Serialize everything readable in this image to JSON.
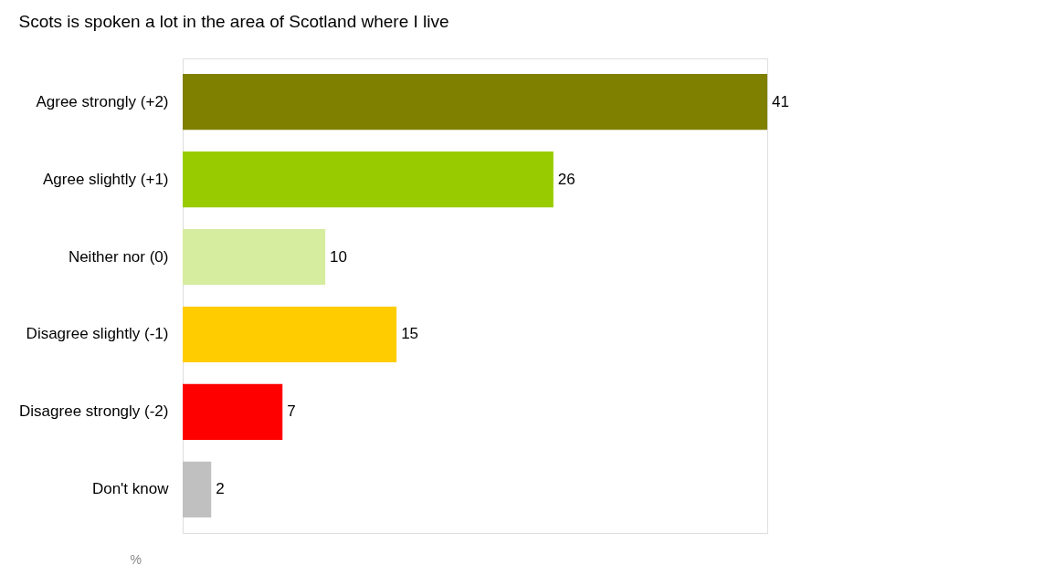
{
  "chart_data": {
    "type": "bar",
    "orientation": "horizontal",
    "title": "Scots is spoken a lot in the area of Scotland where I live",
    "xlabel": "%",
    "categories": [
      "Agree strongly (+2)",
      "Agree slightly (+1)",
      "Neither nor (0)",
      "Disagree slightly (-1)",
      "Disagree strongly (-2)",
      "Don't know"
    ],
    "values": [
      41,
      26,
      10,
      15,
      7,
      2
    ],
    "colors": [
      "#808000",
      "#99cc00",
      "#d6ec9e",
      "#ffcc00",
      "#ff0000",
      "#c0c0c0"
    ],
    "data_labels": true,
    "grid": false,
    "legend": false
  }
}
